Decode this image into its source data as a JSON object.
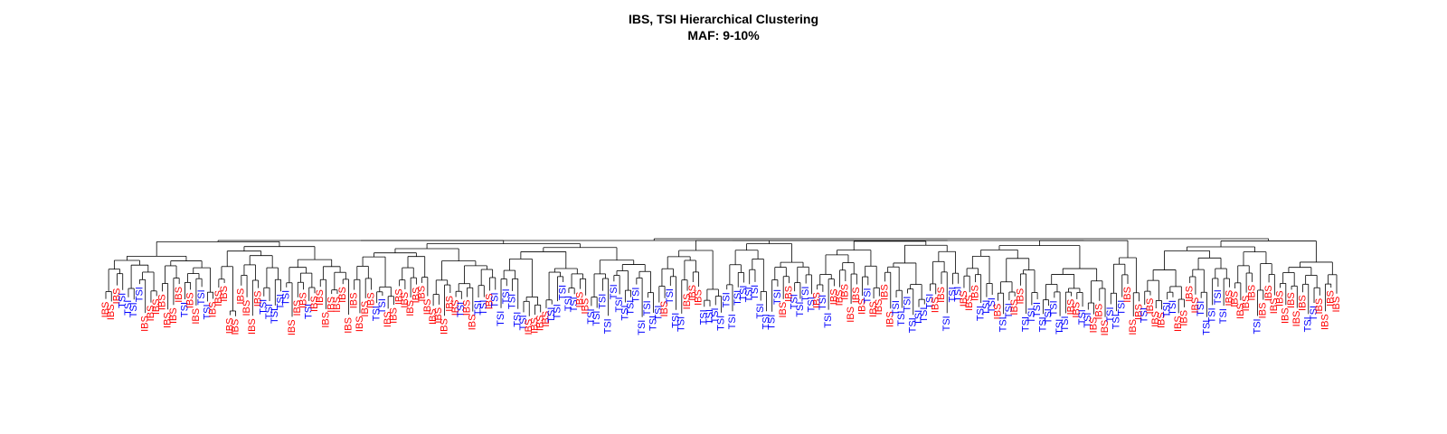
{
  "title": "IBS, TSI Hierarchical Clustering",
  "subtitle": "MAF: 9-10%",
  "colors": {
    "IBS": "#ff0000",
    "TSI": "#0000ff",
    "branch": "#000000"
  },
  "leaves": [
    "IBS",
    "IBS",
    "IBS",
    "TSI",
    "TSI",
    "TSI",
    "TSI",
    "IBS",
    "IBS",
    "IBS",
    "IBS",
    "IBS",
    "IBS",
    "IBS",
    "TSI",
    "IBS",
    "IBS",
    "TSI",
    "TSI",
    "IBS",
    "IBS",
    "IBS",
    "IBS",
    "IBS",
    "IBS",
    "IBS",
    "IBS",
    "IBS",
    "TSI",
    "TSI",
    "TSI",
    "TSI",
    "TSI",
    "IBS",
    "IBS",
    "IBS",
    "TSI",
    "IBS",
    "IBS",
    "IBS",
    "IBS",
    "IBS",
    "IBS",
    "IBS",
    "IBS",
    "IBS",
    "IBS",
    "IBS",
    "TSI",
    "TSI",
    "IBS",
    "IBS",
    "IBS",
    "IBS",
    "IBS",
    "IBS",
    "IBS",
    "IBS",
    "IBS",
    "IBS",
    "IBS",
    "IBS",
    "IBS",
    "TSI",
    "IBS",
    "IBS",
    "TSI",
    "TSI",
    "IBS",
    "TSI",
    "TSI",
    "TSI",
    "TSI",
    "TSI",
    "TSI",
    "IBS",
    "IBS",
    "IBS",
    "IBS",
    "TSI",
    "TSI",
    "TSI",
    "TSI",
    "TSI",
    "IBS",
    "IBS",
    "TSI",
    "TSI",
    "TSI",
    "TSI",
    "TSI",
    "TSI",
    "TSI",
    "TSI",
    "TSI",
    "TSI",
    "TSI",
    "TSI",
    "TSI",
    "IBS",
    "TSI",
    "TSI",
    "TSI",
    "IBS",
    "IBS",
    "IBS",
    "TSI",
    "TSI",
    "TSI",
    "TSI",
    "TSI",
    "TSI",
    "TSI",
    "TSI",
    "TSI",
    "TSI",
    "TSI",
    "TSI",
    "TSI",
    "TSI",
    "IBS",
    "IBS",
    "TSI",
    "TSI",
    "TSI",
    "TSI",
    "IBS",
    "TSI",
    "TSI",
    "IBS",
    "IBS",
    "IBS",
    "IBS",
    "IBS",
    "IBS",
    "TSI",
    "IBS",
    "IBS",
    "IBS",
    "IBS",
    "TSI",
    "TSI",
    "TSI",
    "TSI",
    "TSI",
    "TSI",
    "TSI",
    "IBS",
    "IBS",
    "TSI",
    "TSI",
    "TSI",
    "IBS",
    "IBS",
    "IBS",
    "TSI",
    "TSI",
    "TSI",
    "IBS",
    "TSI",
    "TSI",
    "IBS",
    "IBS",
    "TSI",
    "TSI",
    "TSI",
    "TSI",
    "TSI",
    "TSI",
    "TSI",
    "TSI",
    "IBS",
    "IBS",
    "TSI",
    "TSI",
    "IBS",
    "IBS",
    "IBS",
    "TSI",
    "TSI",
    "TSI",
    "IBS",
    "IBS",
    "IBS",
    "TSI",
    "IBS",
    "IBS",
    "IBS",
    "TSI",
    "TSI",
    "IBS",
    "IBS",
    "IBS",
    "IBS",
    "TSI",
    "TSI",
    "TSI",
    "TSI",
    "TSI",
    "IBS",
    "IBS",
    "IBS",
    "IBS",
    "IBS",
    "TSI",
    "IBS",
    "IBS",
    "IBS",
    "IBS",
    "IBS",
    "IBS",
    "IBS",
    "IBS",
    "TSI",
    "TSI",
    "IBS",
    "IBS",
    "IBS",
    "IBS"
  ]
}
